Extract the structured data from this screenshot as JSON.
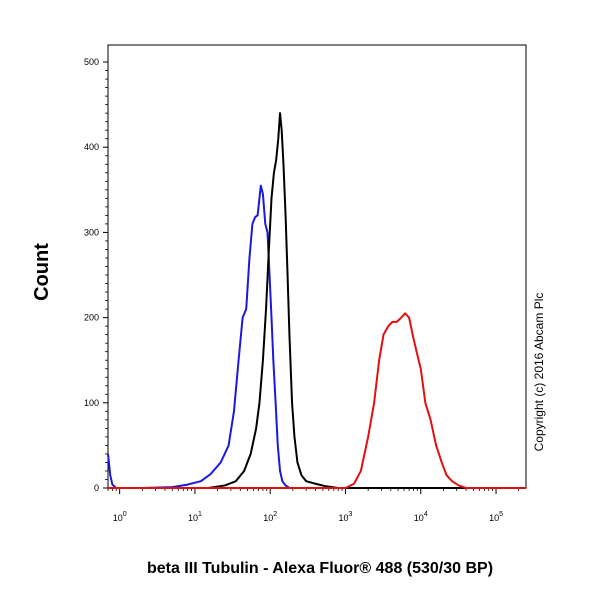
{
  "chart_data": {
    "type": "line",
    "title": "",
    "xlabel": "beta III Tubulin - Alexa Fluor® 488 (530/30 BP)",
    "ylabel": "Count",
    "copyright": "Copyright (c) 2016 Abcam Plc",
    "x_scale": "log",
    "xlim": [
      0.7,
      250000
    ],
    "ylim": [
      0,
      520
    ],
    "y_ticks": [
      0,
      100,
      200,
      300,
      400,
      500
    ],
    "x_ticks": [
      {
        "value": 1,
        "base": "10",
        "exp": "0"
      },
      {
        "value": 10,
        "base": "10",
        "exp": "1"
      },
      {
        "value": 100,
        "base": "10",
        "exp": "2"
      },
      {
        "value": 1000,
        "base": "10",
        "exp": "3"
      },
      {
        "value": 10000,
        "base": "10",
        "exp": "4"
      },
      {
        "value": 100000,
        "base": "10",
        "exp": "5"
      }
    ],
    "grid": false,
    "series": [
      {
        "color": "#1a1adf",
        "points": [
          [
            0.7,
            40
          ],
          [
            0.75,
            15
          ],
          [
            0.8,
            4
          ],
          [
            0.9,
            0
          ],
          [
            2,
            0
          ],
          [
            5,
            1
          ],
          [
            8,
            4
          ],
          [
            12,
            8
          ],
          [
            16,
            16
          ],
          [
            22,
            30
          ],
          [
            28,
            50
          ],
          [
            33,
            90
          ],
          [
            38,
            150
          ],
          [
            43,
            200
          ],
          [
            48,
            210
          ],
          [
            53,
            270
          ],
          [
            58,
            310
          ],
          [
            63,
            318
          ],
          [
            68,
            320
          ],
          [
            75,
            355
          ],
          [
            80,
            345
          ],
          [
            86,
            310
          ],
          [
            92,
            300
          ],
          [
            98,
            250
          ],
          [
            104,
            200
          ],
          [
            110,
            150
          ],
          [
            118,
            100
          ],
          [
            126,
            50
          ],
          [
            135,
            20
          ],
          [
            145,
            8
          ],
          [
            160,
            3
          ],
          [
            180,
            0
          ],
          [
            250000,
            0
          ]
        ]
      },
      {
        "color": "#000000",
        "points": [
          [
            0.7,
            0
          ],
          [
            15,
            0
          ],
          [
            25,
            3
          ],
          [
            35,
            8
          ],
          [
            45,
            20
          ],
          [
            55,
            40
          ],
          [
            65,
            70
          ],
          [
            72,
            100
          ],
          [
            80,
            150
          ],
          [
            88,
            210
          ],
          [
            96,
            280
          ],
          [
            104,
            340
          ],
          [
            112,
            370
          ],
          [
            120,
            385
          ],
          [
            128,
            410
          ],
          [
            135,
            440
          ],
          [
            142,
            420
          ],
          [
            150,
            380
          ],
          [
            160,
            320
          ],
          [
            170,
            250
          ],
          [
            180,
            180
          ],
          [
            195,
            100
          ],
          [
            210,
            60
          ],
          [
            230,
            30
          ],
          [
            260,
            15
          ],
          [
            300,
            8
          ],
          [
            400,
            5
          ],
          [
            550,
            2
          ],
          [
            800,
            0
          ],
          [
            250000,
            0
          ]
        ]
      },
      {
        "color": "#e01010",
        "points": [
          [
            0.7,
            0
          ],
          [
            1000,
            0
          ],
          [
            1300,
            5
          ],
          [
            1600,
            20
          ],
          [
            2000,
            60
          ],
          [
            2400,
            100
          ],
          [
            2800,
            150
          ],
          [
            3200,
            180
          ],
          [
            3700,
            190
          ],
          [
            4200,
            195
          ],
          [
            4800,
            195
          ],
          [
            5500,
            200
          ],
          [
            6200,
            205
          ],
          [
            7000,
            200
          ],
          [
            7800,
            180
          ],
          [
            8800,
            160
          ],
          [
            10000,
            140
          ],
          [
            11500,
            100
          ],
          [
            13500,
            80
          ],
          [
            16000,
            50
          ],
          [
            19000,
            30
          ],
          [
            22000,
            15
          ],
          [
            26000,
            8
          ],
          [
            32000,
            3
          ],
          [
            40000,
            0
          ],
          [
            250000,
            0
          ]
        ]
      }
    ]
  }
}
